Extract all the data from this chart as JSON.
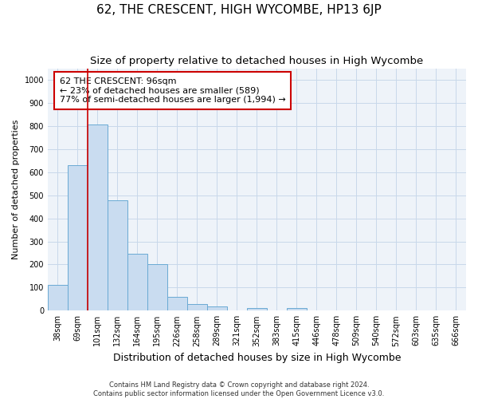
{
  "title": "62, THE CRESCENT, HIGH WYCOMBE, HP13 6JP",
  "subtitle": "Size of property relative to detached houses in High Wycombe",
  "xlabel": "Distribution of detached houses by size in High Wycombe",
  "ylabel": "Number of detached properties",
  "footer_line1": "Contains HM Land Registry data © Crown copyright and database right 2024.",
  "footer_line2": "Contains public sector information licensed under the Open Government Licence v3.0.",
  "categories": [
    "38sqm",
    "69sqm",
    "101sqm",
    "132sqm",
    "164sqm",
    "195sqm",
    "226sqm",
    "258sqm",
    "289sqm",
    "321sqm",
    "352sqm",
    "383sqm",
    "415sqm",
    "446sqm",
    "478sqm",
    "509sqm",
    "540sqm",
    "572sqm",
    "603sqm",
    "635sqm",
    "666sqm"
  ],
  "values": [
    110,
    630,
    805,
    478,
    248,
    202,
    60,
    28,
    18,
    0,
    10,
    0,
    10,
    0,
    0,
    0,
    0,
    0,
    0,
    0,
    0
  ],
  "bar_color": "#c9dcf0",
  "bar_edge_color": "#6aaad4",
  "red_line_x": 1.5,
  "ylim": [
    0,
    1050
  ],
  "yticks": [
    0,
    100,
    200,
    300,
    400,
    500,
    600,
    700,
    800,
    900,
    1000
  ],
  "annotation_text": "62 THE CRESCENT: 96sqm\n← 23% of detached houses are smaller (589)\n77% of semi-detached houses are larger (1,994) →",
  "annotation_box_color": "#ffffff",
  "annotation_box_edge_color": "#cc0000",
  "title_fontsize": 11,
  "subtitle_fontsize": 9.5,
  "xlabel_fontsize": 9,
  "ylabel_fontsize": 8,
  "tick_fontsize": 7,
  "annotation_fontsize": 8,
  "footer_fontsize": 6,
  "bg_color": "#ffffff",
  "grid_color": "#c8d8ea",
  "plot_bg_color": "#eef3f9"
}
